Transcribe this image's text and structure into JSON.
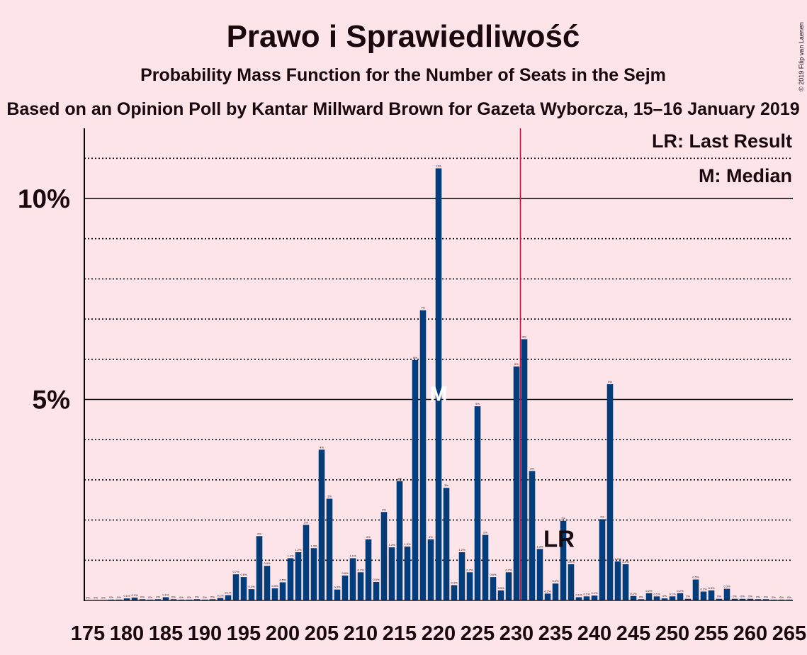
{
  "header": {
    "title": "Prawo i Sprawiedliwość",
    "subtitle": "Probability Mass Function for the Number of Seats in the Sejm",
    "source": "Based on an Opinion Poll by Kantar Millward Brown for Gazeta Wyborcza, 15–16 January 2019",
    "copyright": "© 2019 Filip van Laenen"
  },
  "legend": {
    "last_result": "LR: Last Result",
    "median": "M: Median"
  },
  "markers": {
    "median_label": "M",
    "last_result_label": "LR"
  },
  "colors": {
    "background": "#fde4e8",
    "bar": "#003d7a",
    "majority_line": "#c0143c",
    "text": "#1a0a10"
  },
  "chart_data": {
    "type": "bar",
    "xlim": [
      175,
      265
    ],
    "ylim": [
      0,
      11.7
    ],
    "x_tick_labels": [
      "175",
      "180",
      "185",
      "190",
      "195",
      "200",
      "205",
      "210",
      "215",
      "220",
      "225",
      "230",
      "235",
      "240",
      "245",
      "250",
      "255",
      "260",
      "265"
    ],
    "y_tick_labels": [
      "5%",
      "10%"
    ],
    "y_major_gridlines": [
      5,
      10
    ],
    "y_minor_gridlines": [
      1,
      2,
      3,
      4,
      6,
      7,
      8,
      9,
      11
    ],
    "majority_threshold": 230.5,
    "median": 220,
    "last_result": 235,
    "x": [
      175,
      176,
      177,
      178,
      179,
      180,
      181,
      182,
      183,
      184,
      185,
      186,
      187,
      188,
      189,
      190,
      191,
      192,
      193,
      194,
      195,
      196,
      197,
      198,
      199,
      200,
      201,
      202,
      203,
      204,
      205,
      206,
      207,
      208,
      209,
      210,
      211,
      212,
      213,
      214,
      215,
      216,
      217,
      218,
      219,
      220,
      221,
      222,
      223,
      224,
      225,
      226,
      227,
      228,
      229,
      230,
      231,
      232,
      233,
      234,
      235,
      236,
      237,
      238,
      239,
      240,
      241,
      242,
      243,
      244,
      245,
      246,
      247,
      248,
      249,
      250,
      251,
      252,
      253,
      254,
      255,
      256,
      257,
      258,
      259,
      260,
      261,
      262,
      263,
      264,
      265
    ],
    "values": [
      0.01,
      0.01,
      0.01,
      0.02,
      0.02,
      0.05,
      0.07,
      0.03,
      0.02,
      0.03,
      0.08,
      0.03,
      0.02,
      0.02,
      0.03,
      0.02,
      0.03,
      0.06,
      0.13,
      0.65,
      0.58,
      0.28,
      1.6,
      0.86,
      0.3,
      0.45,
      1.05,
      1.2,
      1.88,
      1.3,
      3.75,
      2.53,
      0.27,
      0.62,
      1.05,
      0.7,
      1.52,
      0.46,
      2.2,
      1.32,
      2.97,
      1.34,
      5.98,
      7.22,
      1.52,
      10.75,
      2.8,
      0.38,
      1.2,
      0.7,
      4.83,
      1.63,
      0.58,
      0.25,
      0.7,
      5.82,
      6.5,
      3.22,
      1.28,
      0.17,
      0.42,
      1.98,
      0.9,
      0.08,
      0.1,
      0.12,
      2.02,
      5.38,
      0.97,
      0.9,
      0.11,
      0.03,
      0.18,
      0.1,
      0.05,
      0.1,
      0.18,
      0.04,
      0.52,
      0.22,
      0.25,
      0.04,
      0.29,
      0.04,
      0.04,
      0.04,
      0.03,
      0.03,
      0.02,
      0.02,
      0.02
    ],
    "data_labels": [
      "0%",
      "0%",
      "0%",
      "0%",
      "0%",
      "0.1%",
      "0.1%",
      "0%",
      "0%",
      "0%",
      "0.1%",
      "0%",
      "0%",
      "0%",
      "0%",
      "0%",
      "0%",
      "0.1%",
      "0.1%",
      "0.7%",
      "0.6%",
      "0.3%",
      "2%",
      "0.9%",
      "0.3%",
      "0.5%",
      "1.1%",
      "1.2%",
      "2%",
      "1.3%",
      "4%",
      "3%",
      "0.3%",
      "0.6%",
      "1.1%",
      "0.7%",
      "2%",
      "0.5%",
      "2%",
      "1.3%",
      "3%",
      "1.3%",
      "6%",
      "7%",
      "2%",
      "11%",
      "3%",
      "0.4%",
      "1.2%",
      "0.7%",
      "5%",
      "2%",
      "0.6%",
      "0.3%",
      "0.7%",
      "6%",
      "6%",
      "3%",
      "1.3%",
      "0.2%",
      "0.4%",
      "2%",
      "0.9%",
      "0.1%",
      "0.1%",
      "0.1%",
      "2%",
      "5%",
      "1.0%",
      "0.9%",
      "0.1%",
      "0%",
      "0.2%",
      "0.1%",
      "0%",
      "0.1%",
      "0.2%",
      "0%",
      "0.5%",
      "0.2%",
      "0.3%",
      "0%",
      "0.3%",
      "0%",
      "0%",
      "0%",
      "0%",
      "0%",
      "0%",
      "0%",
      "0%"
    ]
  }
}
